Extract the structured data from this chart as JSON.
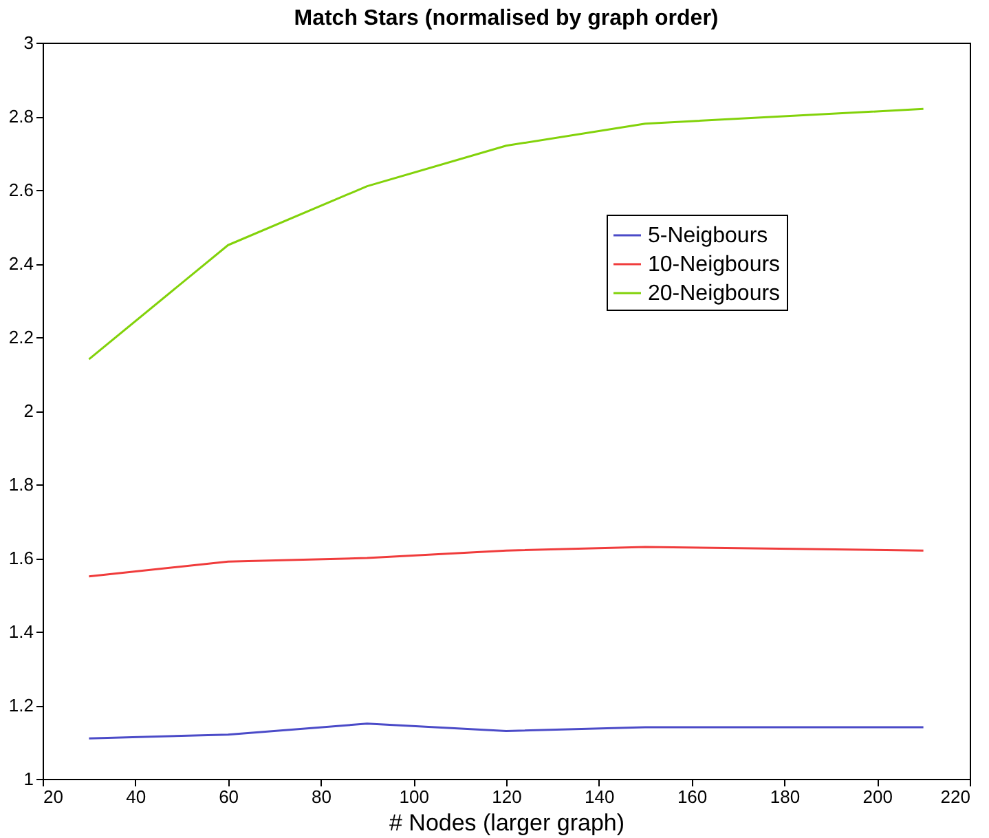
{
  "chart_data": {
    "type": "line",
    "title": "Match Stars (normalised by graph order)",
    "xlabel": "# Nodes (larger graph)",
    "x": [
      30,
      60,
      90,
      120,
      150,
      210
    ],
    "series": [
      {
        "name": "5-Neigbours",
        "color": "#4b4bc8",
        "values": [
          1.11,
          1.12,
          1.15,
          1.13,
          1.14,
          1.14
        ]
      },
      {
        "name": "10-Neigbours",
        "color": "#f03c3c",
        "values": [
          1.55,
          1.59,
          1.6,
          1.62,
          1.63,
          1.62
        ]
      },
      {
        "name": "20-Neigbours",
        "color": "#82d20a",
        "values": [
          2.14,
          2.45,
          2.61,
          2.72,
          2.78,
          2.82
        ]
      }
    ],
    "xlim": [
      20,
      220
    ],
    "xticks": [
      20,
      40,
      60,
      80,
      100,
      120,
      140,
      160,
      180,
      200,
      220
    ],
    "ylim": [
      1,
      3
    ],
    "yticks": [
      1,
      1.2,
      1.4,
      1.6,
      1.8,
      2,
      2.2,
      2.4,
      2.6,
      2.8,
      3
    ],
    "grid": false,
    "legend": "right",
    "marker": "none",
    "line_style": "solid"
  }
}
